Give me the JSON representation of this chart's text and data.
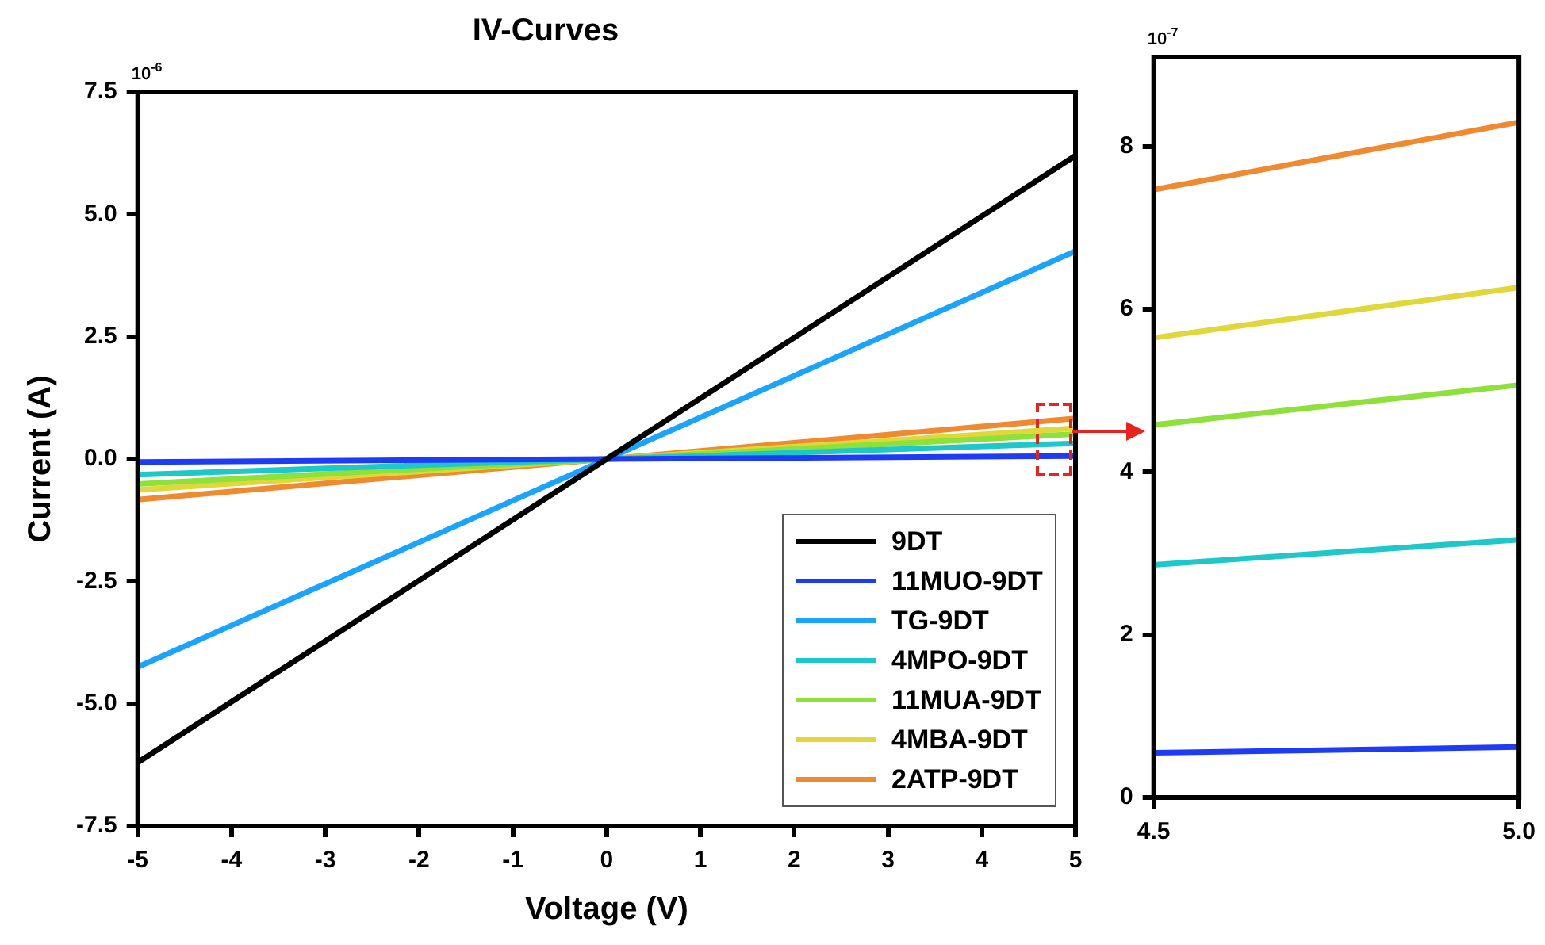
{
  "chart_data": [
    {
      "type": "line",
      "title": "IV-Curves",
      "xlabel": "Voltage (V)",
      "ylabel": "Current (A)",
      "annotations": [
        "10$^{-6}$"
      ],
      "x": [
        -5,
        0,
        5
      ],
      "series": [
        {
          "name": "9DT",
          "color": "#000000",
          "values": [
            -6.2,
            0,
            6.2
          ]
        },
        {
          "name": "11MUO-9DT",
          "color": "#1f3cf5",
          "values": [
            -0.06,
            0,
            0.06
          ]
        },
        {
          "name": "TG-9DT",
          "color": "#1aa3ff",
          "values": [
            -4.25,
            0,
            4.25
          ]
        },
        {
          "name": "4MPO-9DT",
          "color": "#1ec8c8",
          "values": [
            -0.32,
            0,
            0.32
          ]
        },
        {
          "name": "11MUA-9DT",
          "color": "#8ee03a",
          "values": [
            -0.51,
            0,
            0.51
          ]
        },
        {
          "name": "4MBA-9DT",
          "color": "#e0d83a",
          "values": [
            -0.63,
            0,
            0.63
          ]
        },
        {
          "name": "2ATP-9DT",
          "color": "#f08a30",
          "values": [
            -0.83,
            0,
            0.83
          ]
        }
      ],
      "xlim": [
        -5,
        5
      ],
      "xticks": [
        -5,
        -4,
        -3,
        -2,
        -1,
        0,
        1,
        2,
        3,
        4,
        5
      ],
      "ylim": [
        -7.5,
        7.5
      ],
      "yticks": [
        -7.5,
        {
          "value": -5,
          "label": "-5.0"
        },
        -2.5,
        {
          "value": 0,
          "label": "0.0"
        },
        2.5,
        {
          "value": 5,
          "label": "5.0"
        },
        7.5
      ],
      "grid": false,
      "legend": "bottom right",
      "marker": "none",
      "line_style": "solid"
    },
    {
      "type": "line",
      "annotations": [
        "10$^{-7}$"
      ],
      "x": [
        4.5,
        5
      ],
      "series": [
        {
          "color": "#1f3cf5",
          "values": [
            0.55,
            0.62
          ]
        },
        {
          "color": "#1ec8c8",
          "values": [
            2.86,
            3.17
          ]
        },
        {
          "color": "#8ee03a",
          "values": [
            4.58,
            5.07
          ]
        },
        {
          "color": "#e0d83a",
          "values": [
            5.65,
            6.27
          ]
        },
        {
          "color": "#f08a30",
          "values": [
            7.47,
            8.3
          ]
        }
      ],
      "xlim": [
        4.5,
        5
      ],
      "xticks": [
        4.5,
        {
          "value": 5,
          "label": "5.0"
        }
      ],
      "ylim": [
        0,
        9.1
      ],
      "yticks": [
        0,
        2,
        4,
        6,
        8
      ],
      "grid": false,
      "legend": false,
      "marker": "none",
      "line_style": "solid"
    }
  ]
}
